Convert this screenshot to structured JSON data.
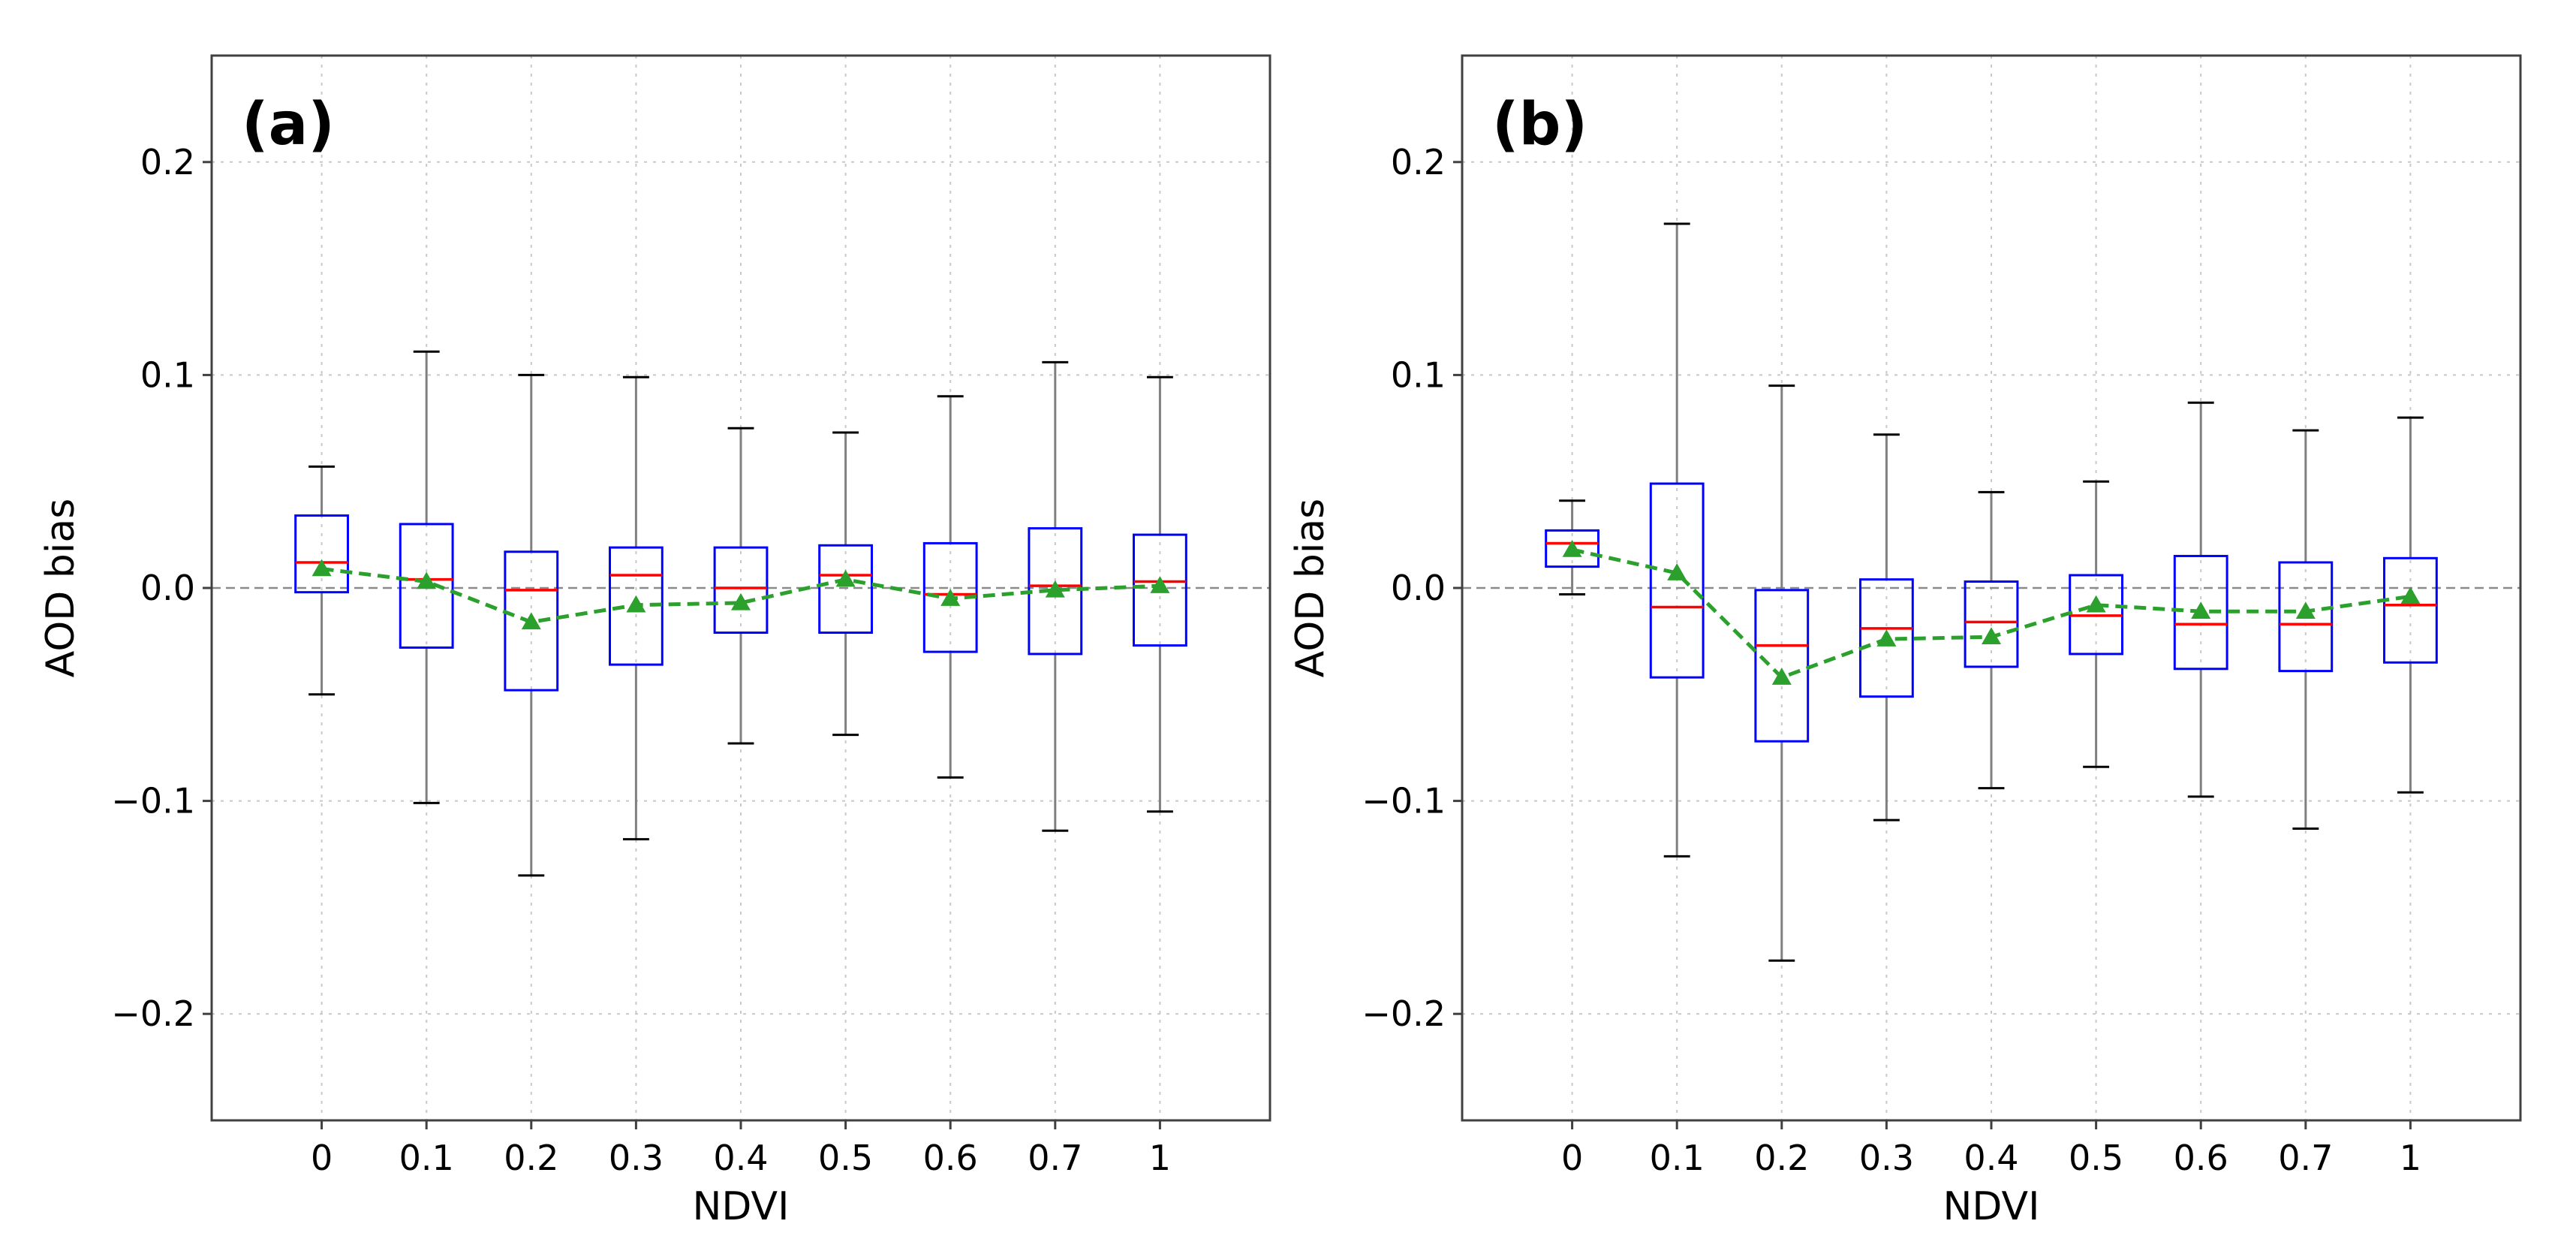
{
  "chart_data": [
    {
      "type": "box",
      "panel_label": "(a)",
      "xlabel": "NDVI",
      "ylabel": "AOD bias",
      "categories": [
        "0",
        "0.1",
        "0.2",
        "0.3",
        "0.4",
        "0.5",
        "0.6",
        "0.7",
        "1"
      ],
      "ylim": [
        -0.25,
        0.25
      ],
      "yticks": [
        -0.2,
        -0.1,
        0.0,
        0.1,
        0.2
      ],
      "ytick_labels": [
        "−0.2",
        "−0.1",
        "0.0",
        "0.1",
        "0.2"
      ],
      "grid": true,
      "reference_line": 0.0,
      "boxes": [
        {
          "whislo": -0.05,
          "q1": -0.002,
          "median": 0.012,
          "q3": 0.034,
          "whishi": 0.057,
          "mean": 0.009
        },
        {
          "whislo": -0.101,
          "q1": -0.028,
          "median": 0.004,
          "q3": 0.03,
          "whishi": 0.111,
          "mean": 0.003
        },
        {
          "whislo": -0.135,
          "q1": -0.048,
          "median": -0.001,
          "q3": 0.017,
          "whishi": 0.1,
          "mean": -0.016
        },
        {
          "whislo": -0.118,
          "q1": -0.036,
          "median": 0.006,
          "q3": 0.019,
          "whishi": 0.099,
          "mean": -0.008
        },
        {
          "whislo": -0.073,
          "q1": -0.021,
          "median": 0.0,
          "q3": 0.019,
          "whishi": 0.075,
          "mean": -0.007
        },
        {
          "whislo": -0.069,
          "q1": -0.021,
          "median": 0.006,
          "q3": 0.02,
          "whishi": 0.073,
          "mean": 0.004
        },
        {
          "whislo": -0.089,
          "q1": -0.03,
          "median": -0.003,
          "q3": 0.021,
          "whishi": 0.09,
          "mean": -0.005
        },
        {
          "whislo": -0.114,
          "q1": -0.031,
          "median": 0.001,
          "q3": 0.028,
          "whishi": 0.106,
          "mean": -0.001
        },
        {
          "whislo": -0.105,
          "q1": -0.027,
          "median": 0.003,
          "q3": 0.025,
          "whishi": 0.099,
          "mean": 0.001
        }
      ]
    },
    {
      "type": "box",
      "panel_label": "(b)",
      "xlabel": "NDVI",
      "ylabel": "AOD bias",
      "categories": [
        "0",
        "0.1",
        "0.2",
        "0.3",
        "0.4",
        "0.5",
        "0.6",
        "0.7",
        "1"
      ],
      "ylim": [
        -0.25,
        0.25
      ],
      "yticks": [
        -0.2,
        -0.1,
        0.0,
        0.1,
        0.2
      ],
      "ytick_labels": [
        "−0.2",
        "−0.1",
        "0.0",
        "0.1",
        "0.2"
      ],
      "grid": true,
      "reference_line": 0.0,
      "boxes": [
        {
          "whislo": -0.003,
          "q1": 0.01,
          "median": 0.021,
          "q3": 0.027,
          "whishi": 0.041,
          "mean": 0.018
        },
        {
          "whislo": -0.126,
          "q1": -0.042,
          "median": -0.009,
          "q3": 0.049,
          "whishi": 0.171,
          "mean": 0.007
        },
        {
          "whislo": -0.175,
          "q1": -0.072,
          "median": -0.027,
          "q3": -0.001,
          "whishi": 0.095,
          "mean": -0.042
        },
        {
          "whislo": -0.109,
          "q1": -0.051,
          "median": -0.019,
          "q3": 0.004,
          "whishi": 0.072,
          "mean": -0.024
        },
        {
          "whislo": -0.094,
          "q1": -0.037,
          "median": -0.016,
          "q3": 0.003,
          "whishi": 0.045,
          "mean": -0.023
        },
        {
          "whislo": -0.084,
          "q1": -0.031,
          "median": -0.013,
          "q3": 0.006,
          "whishi": 0.05,
          "mean": -0.008
        },
        {
          "whislo": -0.098,
          "q1": -0.038,
          "median": -0.017,
          "q3": 0.015,
          "whishi": 0.087,
          "mean": -0.011
        },
        {
          "whislo": -0.113,
          "q1": -0.039,
          "median": -0.017,
          "q3": 0.012,
          "whishi": 0.074,
          "mean": -0.011
        },
        {
          "whislo": -0.096,
          "q1": -0.035,
          "median": -0.008,
          "q3": 0.014,
          "whishi": 0.08,
          "mean": -0.004
        }
      ]
    }
  ],
  "colors": {
    "box": "#0000ff",
    "median": "#ff0000",
    "whisker": "#808080",
    "cap": "#000000",
    "mean_line": "#2ca02c",
    "mean_marker": "#2ca02c",
    "grid": "#c8c8c8",
    "zero_line": "#8a8a8a",
    "axes": "#404040"
  }
}
